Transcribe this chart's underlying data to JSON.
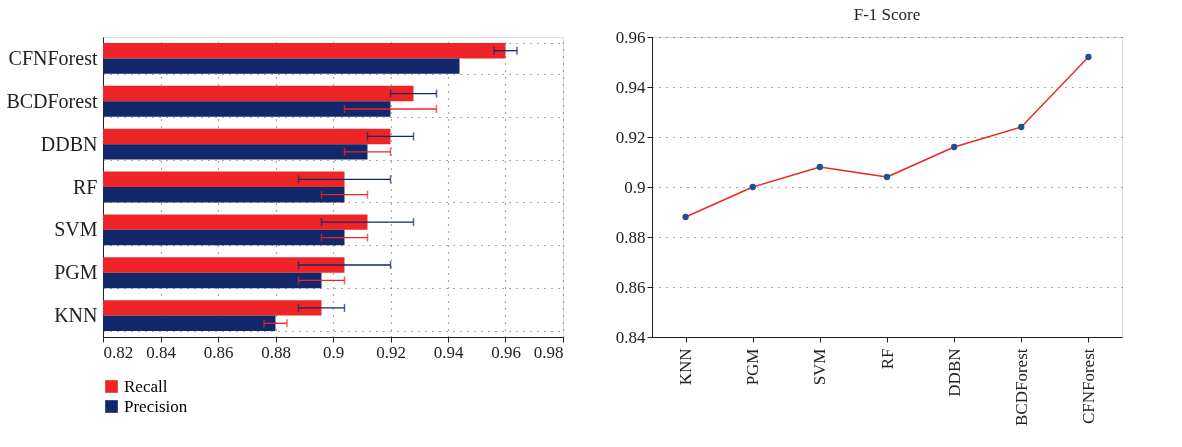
{
  "chart_data": [
    {
      "type": "bar",
      "orientation": "horizontal",
      "categories": [
        "CFNForest",
        "BCDForest",
        "DDBN",
        "RF",
        "SVM",
        "PGM",
        "KNN"
      ],
      "series": [
        {
          "name": "Recall",
          "color": "#ee2426",
          "values": [
            0.96,
            0.928,
            0.92,
            0.904,
            0.912,
            0.904,
            0.896
          ],
          "errors": [
            [
              0.956,
              0.964
            ],
            [
              0.92,
              0.936
            ],
            [
              0.912,
              0.928
            ],
            [
              0.888,
              0.92
            ],
            [
              0.896,
              0.928
            ],
            [
              0.888,
              0.92
            ],
            [
              0.888,
              0.904
            ]
          ]
        },
        {
          "name": "Precision",
          "color": "#13276b",
          "values": [
            0.944,
            0.92,
            0.912,
            0.904,
            0.904,
            0.896,
            0.88
          ],
          "errors": [
            null,
            [
              0.904,
              0.936
            ],
            [
              0.904,
              0.92
            ],
            [
              0.896,
              0.912
            ],
            [
              0.896,
              0.912
            ],
            [
              0.888,
              0.904
            ],
            [
              0.876,
              0.884
            ]
          ]
        }
      ],
      "xlim": [
        0.82,
        0.98
      ],
      "xticks": [
        0.82,
        0.84,
        0.86,
        0.88,
        0.9,
        0.92,
        0.94,
        0.96,
        0.98
      ],
      "grid": true,
      "legend": "bottom"
    },
    {
      "type": "line",
      "title": "F-1 Score",
      "categories": [
        "KNN",
        "PGM",
        "SVM",
        "RF",
        "DDBN",
        "BCDForest",
        "CFNForest"
      ],
      "series": [
        {
          "color": "#ee2426",
          "colors": [
            "#1f4e9a",
            "#1f4e9a",
            "#1f4e9a",
            "#1f4e9a",
            "#1f4e9a",
            "#1f4e9a",
            "#1f4e9a"
          ],
          "values": [
            0.888,
            0.9,
            0.908,
            0.904,
            0.916,
            0.924,
            0.952
          ]
        }
      ],
      "ylim": [
        0.84,
        0.96
      ],
      "yticks": [
        0.84,
        0.86,
        0.88,
        0.9,
        0.92,
        0.94,
        0.96
      ],
      "grid": "y",
      "marker": "circle"
    }
  ]
}
